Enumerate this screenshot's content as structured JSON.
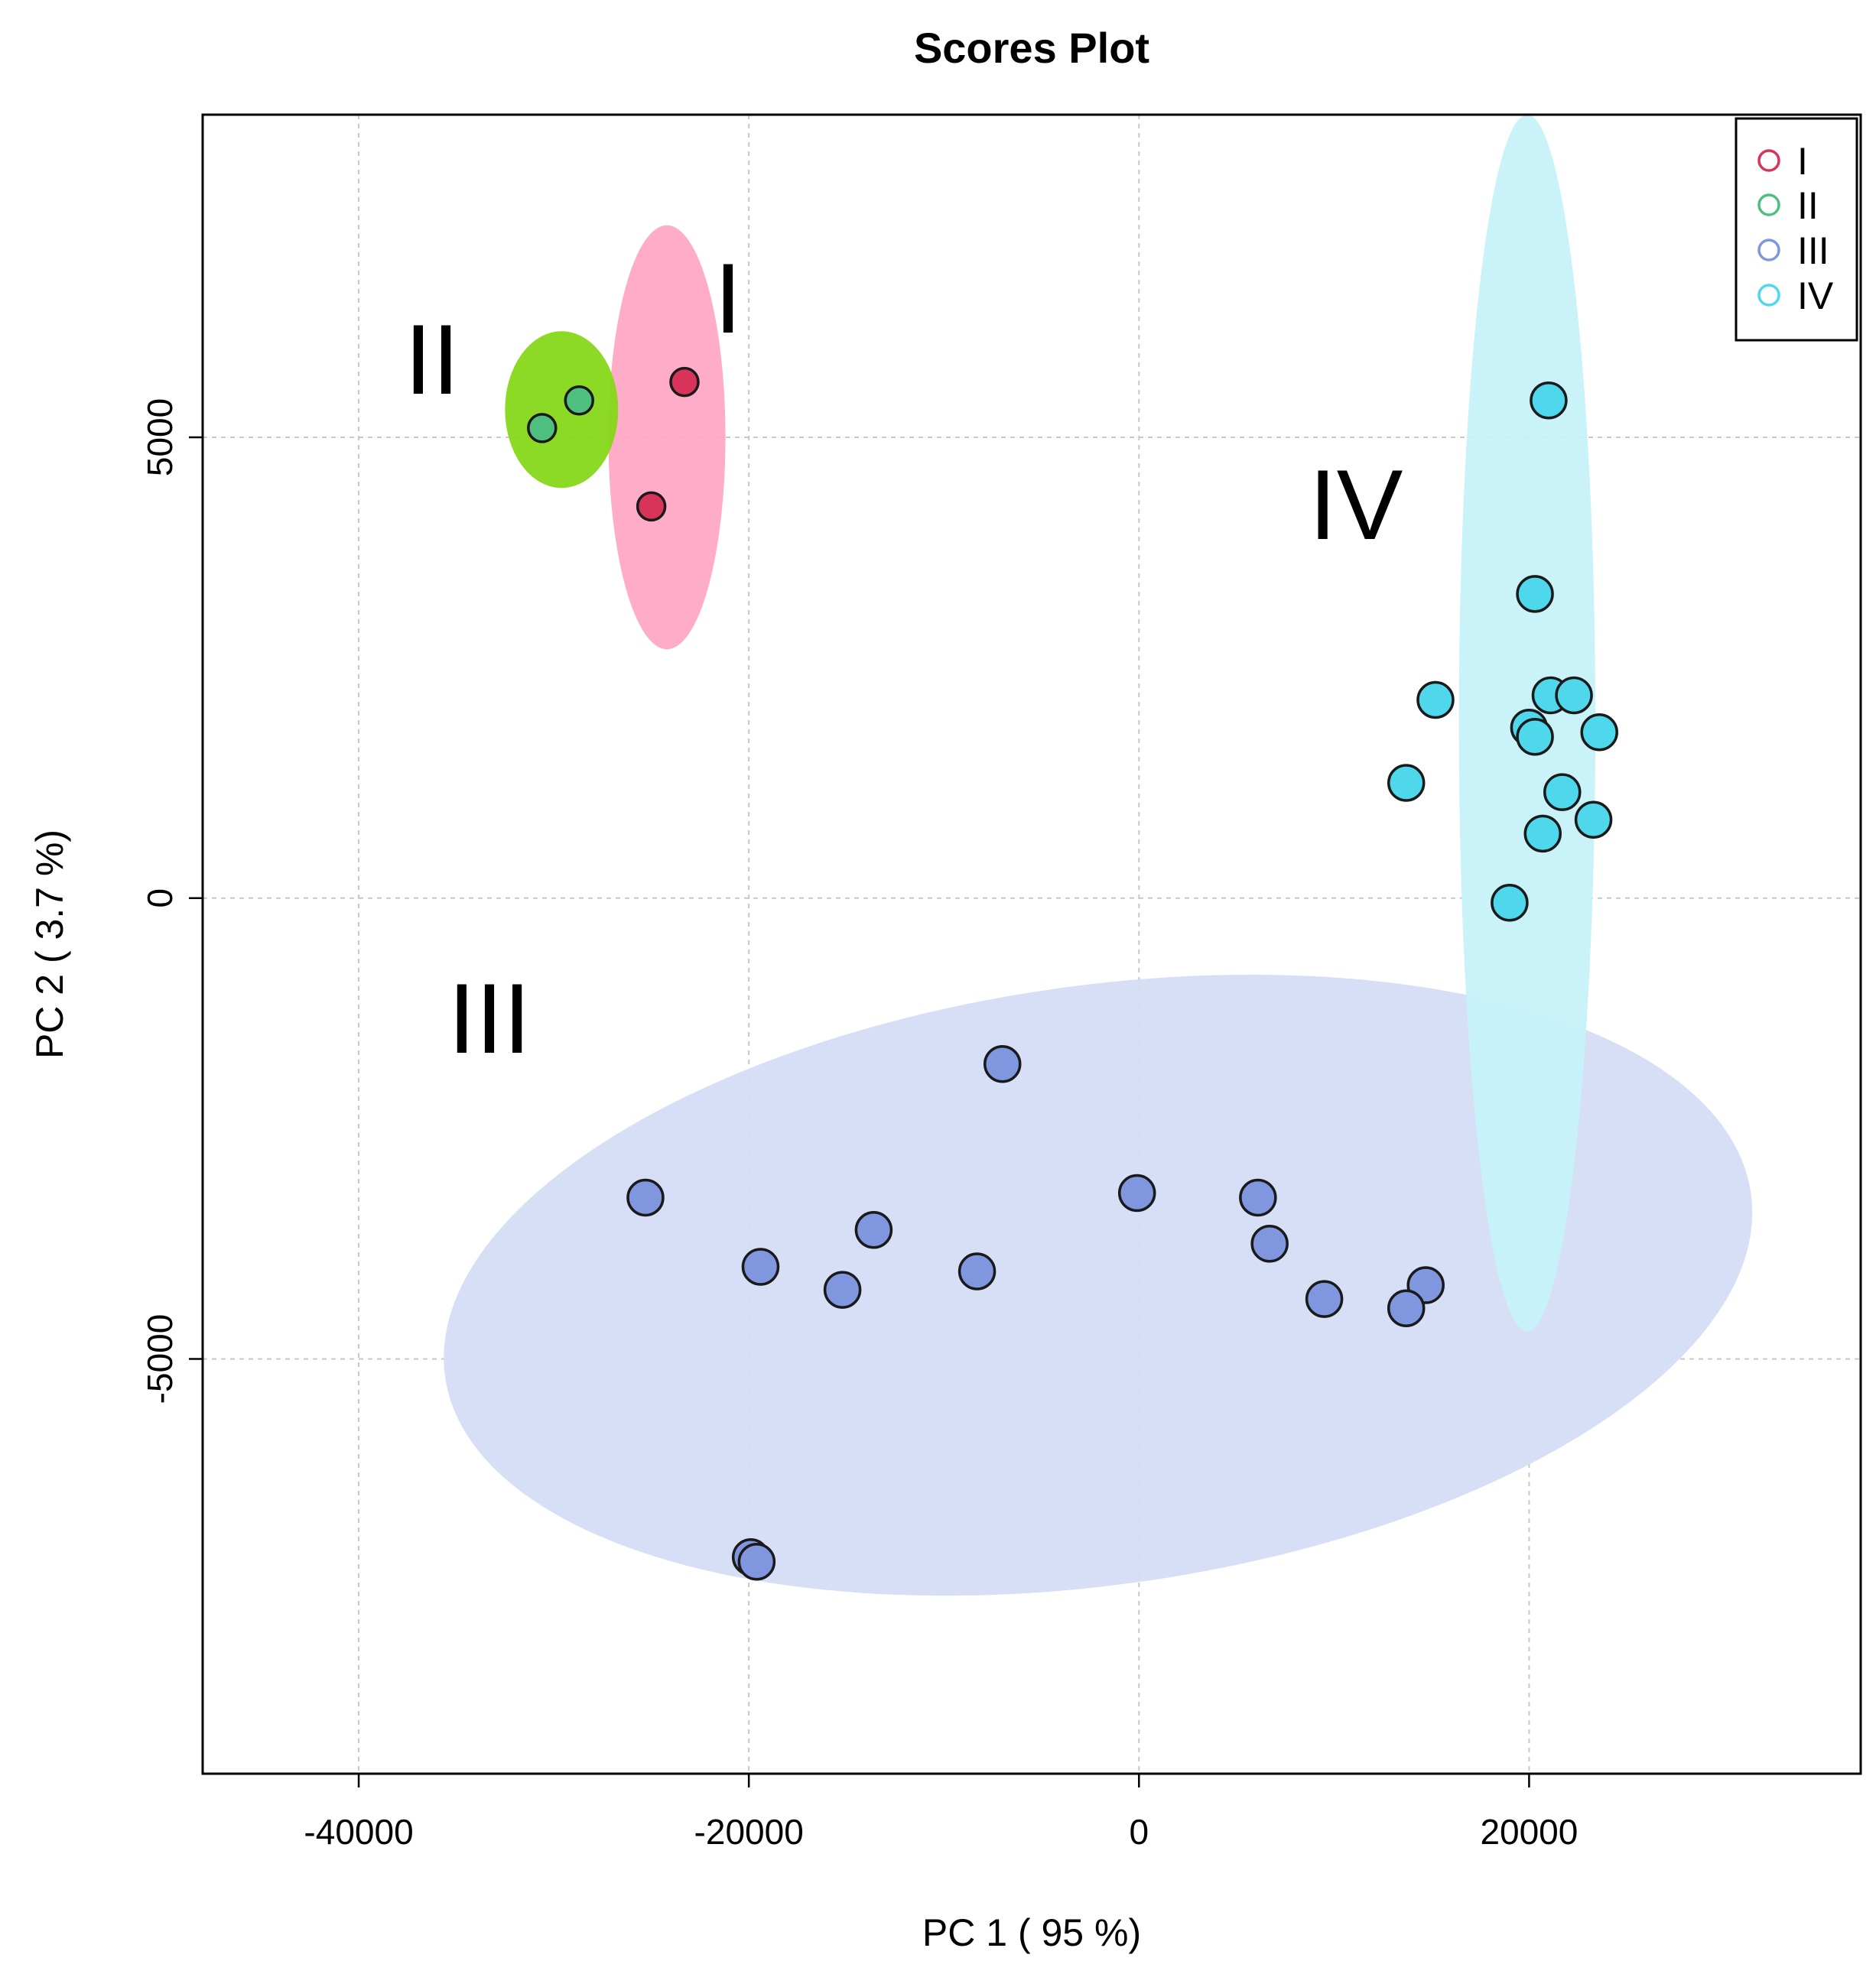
{
  "chart_data": {
    "type": "scatter",
    "title": "Scores Plot",
    "xlabel": "PC 1 ( 95 %)",
    "ylabel": "PC 2 ( 3.7 %)",
    "xlim": [
      -48000,
      37000
    ],
    "ylim": [
      -9500,
      8500
    ],
    "xticks": [
      -40000,
      -20000,
      0,
      20000
    ],
    "yticks": [
      -5000,
      0,
      5000
    ],
    "xtick_labels": [
      "-40000",
      "-20000",
      "0",
      "20000"
    ],
    "ytick_labels": [
      "-5000",
      "0",
      "5000"
    ],
    "grid": true,
    "legend_position": "top-right",
    "series": [
      {
        "name": "I",
        "color": "#d8345a",
        "ellipse_color": "#ffa8c5",
        "ellipse": {
          "cx": -24200,
          "cy": 5000,
          "rx": 3000,
          "ry": 2300,
          "angle": 0
        },
        "points": [
          [
            -23300,
            5600
          ],
          [
            -25000,
            4250
          ]
        ]
      },
      {
        "name": "II",
        "color": "#4fbf7f",
        "ellipse_color": "#86d81a",
        "ellipse": {
          "cx": -29600,
          "cy": 5300,
          "rx": 2900,
          "ry": 850,
          "angle": 0
        },
        "points": [
          [
            -28700,
            5400
          ],
          [
            -30600,
            5100
          ]
        ]
      },
      {
        "name": "III",
        "color": "#8097e0",
        "ellipse_color": "#d5ddf5",
        "ellipse": {
          "cx": -2100,
          "cy": -4200,
          "rx": 33800,
          "ry": 3250,
          "angle": 8
        },
        "points": [
          [
            -7000,
            -1800
          ],
          [
            -25300,
            -3250
          ],
          [
            -19400,
            -4000
          ],
          [
            -13600,
            -3600
          ],
          [
            -15200,
            -4250
          ],
          [
            -8300,
            -4050
          ],
          [
            -100,
            -3200
          ],
          [
            6100,
            -3250
          ],
          [
            6700,
            -3750
          ],
          [
            9500,
            -4350
          ],
          [
            14700,
            -4200
          ],
          [
            13700,
            -4450
          ],
          [
            -19900,
            -7150
          ],
          [
            -19600,
            -7200
          ]
        ]
      },
      {
        "name": "IV",
        "color": "#4fd8ec",
        "ellipse_color": "#c6f2f9",
        "ellipse": {
          "cx": 19900,
          "cy": 1900,
          "rx": 3500,
          "ry": 6600,
          "angle": 0
        },
        "points": [
          [
            21000,
            5400
          ],
          [
            20300,
            3300
          ],
          [
            15200,
            2150
          ],
          [
            21100,
            2200
          ],
          [
            22300,
            2200
          ],
          [
            20000,
            1850
          ],
          [
            20300,
            1750
          ],
          [
            23600,
            1800
          ],
          [
            13700,
            1250
          ],
          [
            21700,
            1150
          ],
          [
            23300,
            850
          ],
          [
            20700,
            700
          ],
          [
            19000,
            -50
          ]
        ]
      }
    ],
    "annotations": [
      "I",
      "II",
      "III",
      "IV"
    ]
  }
}
